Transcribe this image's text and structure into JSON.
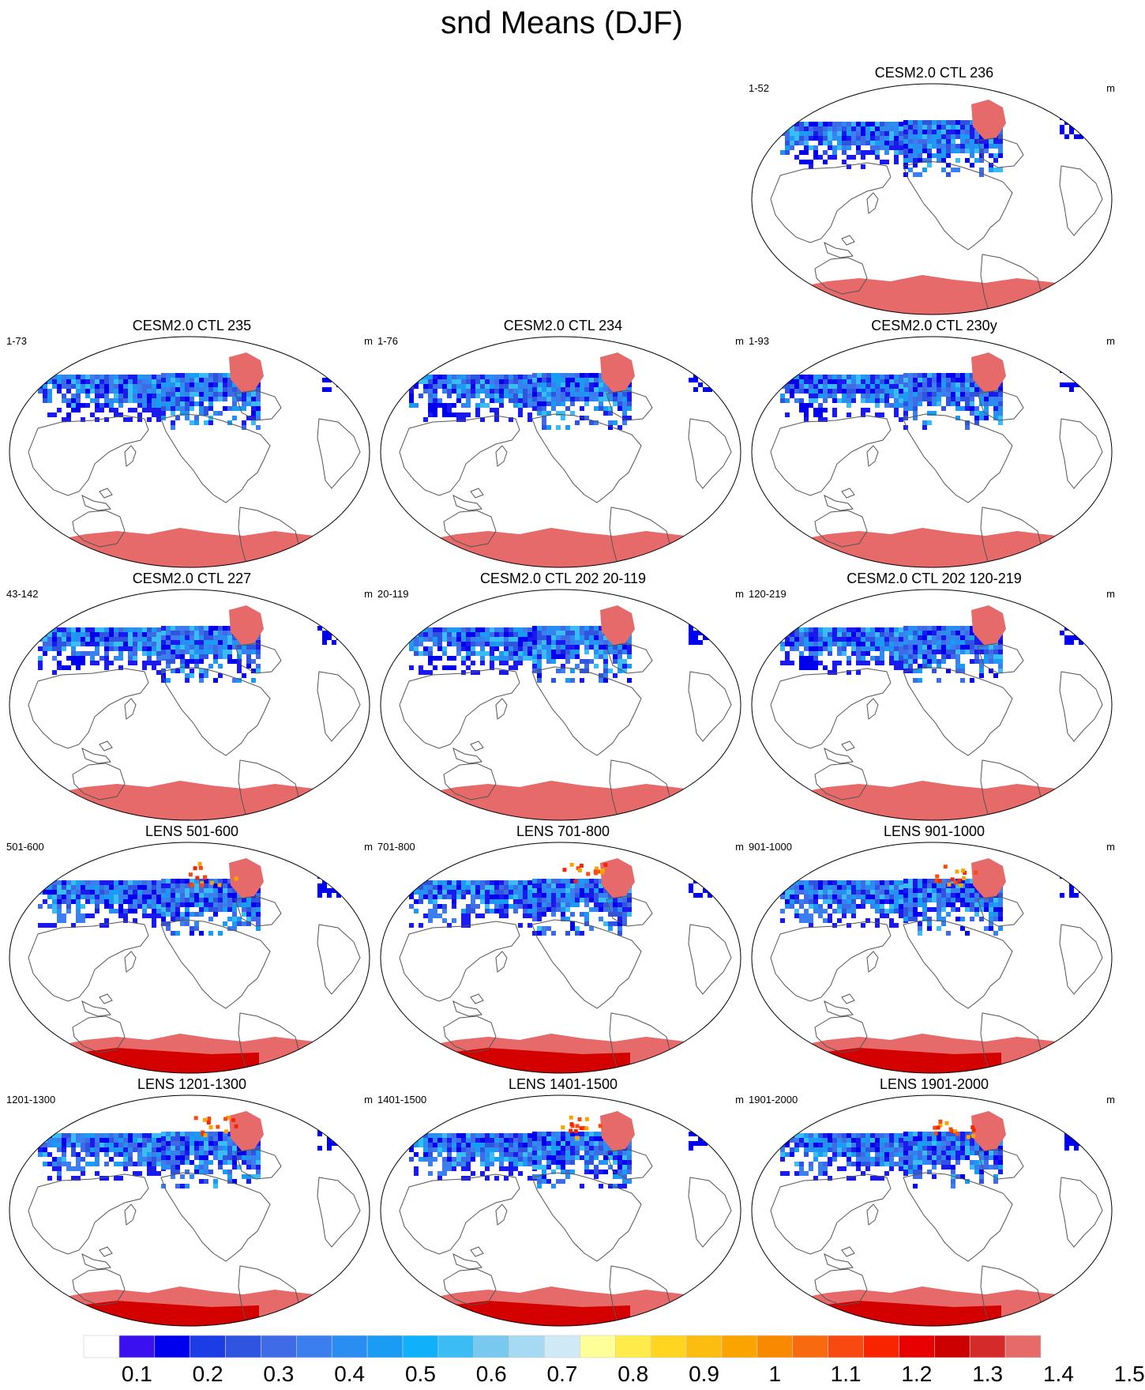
{
  "title": "snd Means (DJF)",
  "panels": [
    {
      "title": "CESM2.0 CTL 236",
      "years": "1-52",
      "units": "m",
      "style": "ctl"
    },
    {
      "title": "CESM2.0 CTL 235",
      "years": "1-73",
      "units": "m",
      "style": "ctl"
    },
    {
      "title": "CESM2.0 CTL 234",
      "years": "1-76",
      "units": "m",
      "style": "ctl"
    },
    {
      "title": "CESM2.0 CTL 230y",
      "years": "1-93",
      "units": "m",
      "style": "ctl"
    },
    {
      "title": "CESM2.0 CTL 227",
      "years": "43-142",
      "units": "m",
      "style": "ctl"
    },
    {
      "title": "CESM2.0 CTL 202 20-119",
      "years": "20-119",
      "units": "m",
      "style": "ctl"
    },
    {
      "title": "CESM2.0 CTL 202 120-219",
      "years": "120-219",
      "units": "m",
      "style": "ctl"
    },
    {
      "title": "LENS 501-600",
      "years": "501-600",
      "units": "m",
      "style": "lens"
    },
    {
      "title": "LENS 701-800",
      "years": "701-800",
      "units": "m",
      "style": "lens"
    },
    {
      "title": "LENS 901-1000",
      "years": "901-1000",
      "units": "m",
      "style": "lens"
    },
    {
      "title": "LENS 1201-1300",
      "years": "1201-1300",
      "units": "m",
      "style": "lens"
    },
    {
      "title": "LENS 1401-1500",
      "years": "1401-1500",
      "units": "m",
      "style": "lens"
    },
    {
      "title": "LENS 1901-2000",
      "years": "1901-2000",
      "units": "m",
      "style": "lens"
    }
  ],
  "colorbar": {
    "colors": [
      "#ffffff",
      "#3a10f0",
      "#0000ee",
      "#1c3de6",
      "#2f55e0",
      "#3f6be6",
      "#3a7ef0",
      "#2a8df2",
      "#1a9cf5",
      "#10b0fa",
      "#3cbcf5",
      "#78c8f0",
      "#a6daf3",
      "#cfe9f7",
      "#ffff99",
      "#ffec4a",
      "#ffd520",
      "#fcbc10",
      "#fba400",
      "#f98a00",
      "#f86a10",
      "#f84a10",
      "#f82400",
      "#e80000",
      "#cc0000",
      "#d42a2a",
      "#e76a6a"
    ],
    "labels": [
      "0.1",
      "0.2",
      "0.3",
      "0.4",
      "0.5",
      "0.6",
      "0.7",
      "0.8",
      "0.9",
      "1",
      "1.1",
      "1.2",
      "1.3",
      "1.4",
      "1.5"
    ]
  }
}
